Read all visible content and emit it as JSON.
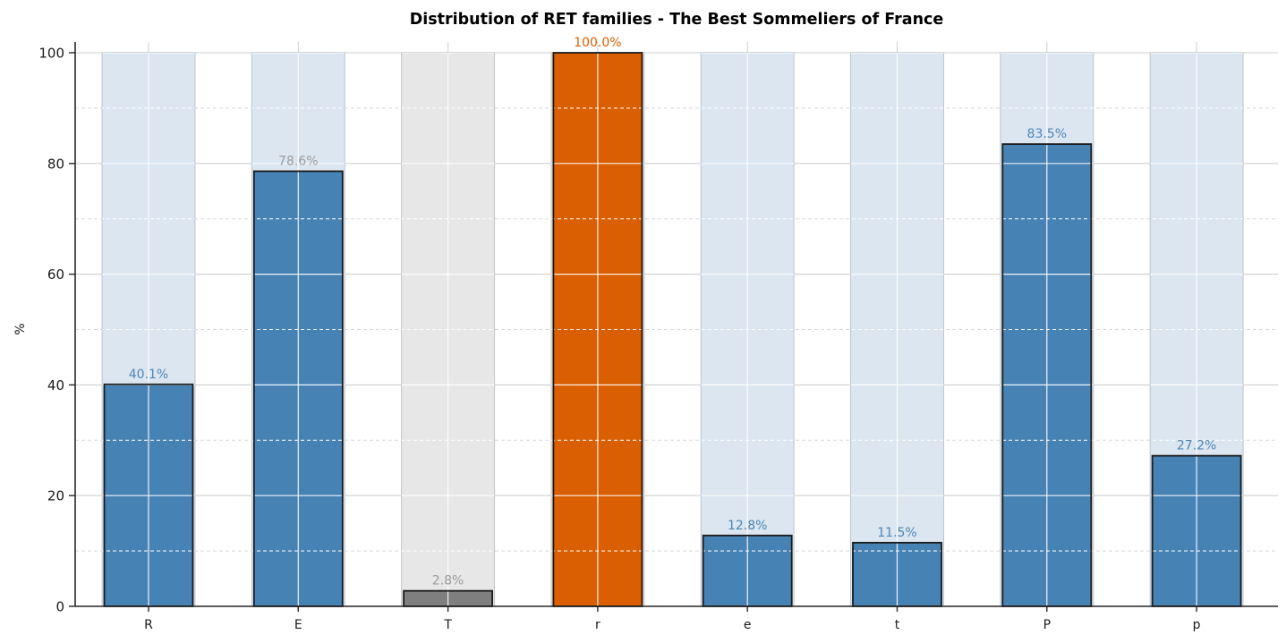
{
  "figure": {
    "kind": "matplotlib-bar-figure",
    "background": "#ffffff"
  },
  "chart_data": {
    "type": "bar",
    "title": "Distribution of RET families - The Best Sommeliers of France",
    "xlabel": "",
    "ylabel": "%",
    "categories": [
      "R",
      "E",
      "T",
      "r",
      "e",
      "t",
      "P",
      "p"
    ],
    "values": [
      40.1,
      78.6,
      2.8,
      100.0,
      12.8,
      11.5,
      83.5,
      27.2
    ],
    "value_labels": [
      "40.1%",
      "78.6%",
      "2.8%",
      "100.0%",
      "12.8%",
      "11.5%",
      "83.5%",
      "27.2%"
    ],
    "bar_colors": [
      "#4682b4",
      "#4682b4",
      "#7f7f7f",
      "#d95f02",
      "#4682b4",
      "#4682b4",
      "#4682b4",
      "#4682b4"
    ],
    "bar_edge_color": "#1a1a1a",
    "label_colors": [
      "#4f86b4",
      "#9b9b9b",
      "#9b9b9b",
      "#d95f02",
      "#4f86b4",
      "#4f86b4",
      "#4f86b4",
      "#4f86b4"
    ],
    "background_bar_value": 100,
    "background_bar_colors": [
      "#dbe6f1",
      "#dbe6f1",
      "#e7e7e7",
      "#f3dcc6",
      "#dbe6f1",
      "#dbe6f1",
      "#dbe6f1",
      "#dbe6f1"
    ],
    "background_bar_edge": "rgba(100,115,130,0.35)",
    "ylim": [
      0,
      100
    ],
    "yticks": [
      0,
      20,
      40,
      60,
      80,
      100
    ],
    "minor_yticks": [
      10,
      30,
      50,
      70,
      90
    ],
    "grid": {
      "major_style": "solid",
      "minor_style": "dashed",
      "outside_color": "#cfcfcf",
      "over_bars_color": "rgba(255,255,255,0.9)"
    },
    "legend": null
  },
  "style": {
    "axis_color": "#262626",
    "tick_label_color": "#1a1a1a",
    "title_color": "#000000"
  },
  "note_labels": {
    "label_colors_comment": "value labels match their bar color family"
  }
}
